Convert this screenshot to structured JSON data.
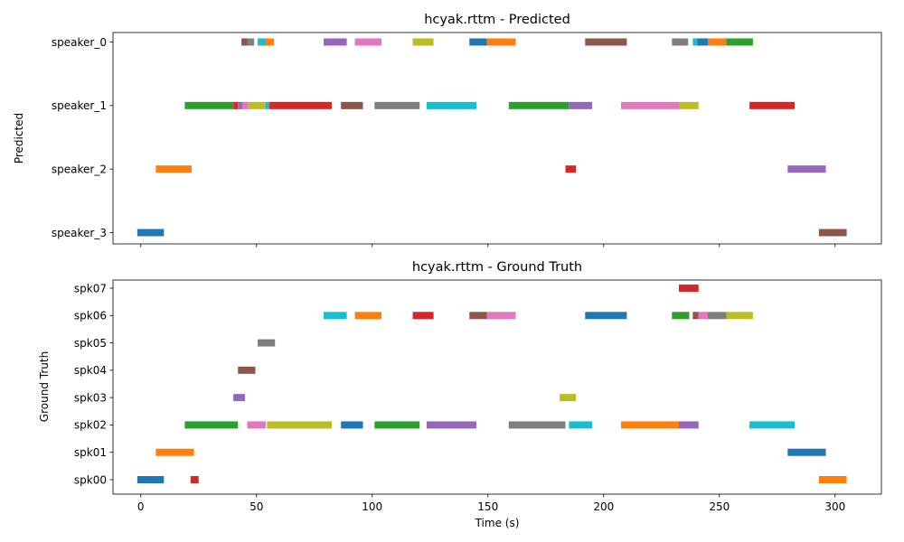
{
  "chart_data": [
    {
      "type": "timeline",
      "title": "hcyak.rttm - Predicted",
      "ylabel": "Predicted",
      "xlabel": "",
      "xlim": [
        -12,
        320
      ],
      "xticks": [
        0,
        50,
        100,
        150,
        200,
        250,
        300
      ],
      "show_xtick_labels": false,
      "grid": false,
      "rows": [
        "speaker_3",
        "speaker_2",
        "speaker_1",
        "speaker_0"
      ],
      "segments": [
        {
          "row": "speaker_0",
          "start": 43.5,
          "end": 46.0,
          "color": "#8c564b"
        },
        {
          "row": "speaker_0",
          "start": 46.0,
          "end": 49.0,
          "color": "#7f7f7f"
        },
        {
          "row": "speaker_0",
          "start": 50.5,
          "end": 54.0,
          "color": "#17becf"
        },
        {
          "row": "speaker_0",
          "start": 54.0,
          "end": 57.5,
          "color": "#ff7f0e"
        },
        {
          "row": "speaker_0",
          "start": 79.0,
          "end": 89.0,
          "color": "#9467bd"
        },
        {
          "row": "speaker_0",
          "start": 92.5,
          "end": 104.0,
          "color": "#e377c2"
        },
        {
          "row": "speaker_0",
          "start": 117.5,
          "end": 126.5,
          "color": "#bcbd22"
        },
        {
          "row": "speaker_0",
          "start": 142.0,
          "end": 149.5,
          "color": "#1f77b4"
        },
        {
          "row": "speaker_0",
          "start": 149.5,
          "end": 162.0,
          "color": "#ff7f0e"
        },
        {
          "row": "speaker_0",
          "start": 192.0,
          "end": 210.0,
          "color": "#8c564b"
        },
        {
          "row": "speaker_0",
          "start": 229.5,
          "end": 236.5,
          "color": "#7f7f7f"
        },
        {
          "row": "speaker_0",
          "start": 238.5,
          "end": 240.5,
          "color": "#17becf"
        },
        {
          "row": "speaker_0",
          "start": 240.5,
          "end": 245.0,
          "color": "#1f77b4"
        },
        {
          "row": "speaker_0",
          "start": 245.0,
          "end": 253.0,
          "color": "#ff7f0e"
        },
        {
          "row": "speaker_0",
          "start": 253.0,
          "end": 264.5,
          "color": "#2ca02c"
        },
        {
          "row": "speaker_1",
          "start": 19.0,
          "end": 40.0,
          "color": "#2ca02c"
        },
        {
          "row": "speaker_1",
          "start": 40.0,
          "end": 42.0,
          "color": "#d62728"
        },
        {
          "row": "speaker_1",
          "start": 42.0,
          "end": 44.0,
          "color": "#9467bd"
        },
        {
          "row": "speaker_1",
          "start": 44.0,
          "end": 46.5,
          "color": "#e377c2"
        },
        {
          "row": "speaker_1",
          "start": 46.5,
          "end": 54.0,
          "color": "#bcbd22"
        },
        {
          "row": "speaker_1",
          "start": 54.0,
          "end": 55.5,
          "color": "#17becf"
        },
        {
          "row": "speaker_1",
          "start": 55.5,
          "end": 82.5,
          "color": "#d62728"
        },
        {
          "row": "speaker_1",
          "start": 86.5,
          "end": 96.0,
          "color": "#8c564b"
        },
        {
          "row": "speaker_1",
          "start": 101.0,
          "end": 120.5,
          "color": "#7f7f7f"
        },
        {
          "row": "speaker_1",
          "start": 123.5,
          "end": 145.0,
          "color": "#17becf"
        },
        {
          "row": "speaker_1",
          "start": 159.0,
          "end": 185.0,
          "color": "#2ca02c"
        },
        {
          "row": "speaker_1",
          "start": 185.0,
          "end": 195.0,
          "color": "#9467bd"
        },
        {
          "row": "speaker_1",
          "start": 207.5,
          "end": 232.5,
          "color": "#e377c2"
        },
        {
          "row": "speaker_1",
          "start": 232.5,
          "end": 241.0,
          "color": "#bcbd22"
        },
        {
          "row": "speaker_1",
          "start": 263.0,
          "end": 282.5,
          "color": "#d62728"
        },
        {
          "row": "speaker_2",
          "start": 6.5,
          "end": 22.0,
          "color": "#ff7f0e"
        },
        {
          "row": "speaker_2",
          "start": 183.5,
          "end": 188.0,
          "color": "#d62728"
        },
        {
          "row": "speaker_2",
          "start": 279.5,
          "end": 296.0,
          "color": "#9467bd"
        },
        {
          "row": "speaker_3",
          "start": -1.5,
          "end": 10.0,
          "color": "#1f77b4"
        },
        {
          "row": "speaker_3",
          "start": 293.0,
          "end": 305.0,
          "color": "#8c564b"
        }
      ]
    },
    {
      "type": "timeline",
      "title": "hcyak.rttm - Ground Truth",
      "ylabel": "Ground Truth",
      "xlabel": "Time (s)",
      "xlim": [
        -12,
        320
      ],
      "xticks": [
        0,
        50,
        100,
        150,
        200,
        250,
        300
      ],
      "show_xtick_labels": true,
      "grid": false,
      "rows": [
        "spk00",
        "spk01",
        "spk02",
        "spk03",
        "spk04",
        "spk05",
        "spk06",
        "spk07"
      ],
      "segments": [
        {
          "row": "spk00",
          "start": -1.5,
          "end": 10.0,
          "color": "#1f77b4"
        },
        {
          "row": "spk00",
          "start": 21.5,
          "end": 25.0,
          "color": "#d62728"
        },
        {
          "row": "spk00",
          "start": 293.0,
          "end": 305.0,
          "color": "#ff7f0e"
        },
        {
          "row": "spk01",
          "start": 6.5,
          "end": 23.0,
          "color": "#ff7f0e"
        },
        {
          "row": "spk01",
          "start": 279.5,
          "end": 296.0,
          "color": "#1f77b4"
        },
        {
          "row": "spk02",
          "start": 19.0,
          "end": 42.0,
          "color": "#2ca02c"
        },
        {
          "row": "spk02",
          "start": 46.0,
          "end": 54.0,
          "color": "#e377c2"
        },
        {
          "row": "spk02",
          "start": 54.5,
          "end": 82.5,
          "color": "#bcbd22"
        },
        {
          "row": "spk02",
          "start": 86.5,
          "end": 96.0,
          "color": "#1f77b4"
        },
        {
          "row": "spk02",
          "start": 101.0,
          "end": 120.5,
          "color": "#2ca02c"
        },
        {
          "row": "spk02",
          "start": 123.5,
          "end": 145.0,
          "color": "#9467bd"
        },
        {
          "row": "spk02",
          "start": 159.0,
          "end": 183.5,
          "color": "#7f7f7f"
        },
        {
          "row": "spk02",
          "start": 185.0,
          "end": 195.0,
          "color": "#17becf"
        },
        {
          "row": "spk02",
          "start": 207.5,
          "end": 232.5,
          "color": "#ff7f0e"
        },
        {
          "row": "spk02",
          "start": 232.5,
          "end": 241.0,
          "color": "#9467bd"
        },
        {
          "row": "spk02",
          "start": 263.0,
          "end": 282.5,
          "color": "#17becf"
        },
        {
          "row": "spk03",
          "start": 40.0,
          "end": 45.0,
          "color": "#9467bd"
        },
        {
          "row": "spk03",
          "start": 181.0,
          "end": 188.0,
          "color": "#bcbd22"
        },
        {
          "row": "spk04",
          "start": 42.0,
          "end": 49.5,
          "color": "#8c564b"
        },
        {
          "row": "spk05",
          "start": 50.5,
          "end": 58.0,
          "color": "#7f7f7f"
        },
        {
          "row": "spk06",
          "start": 79.0,
          "end": 89.0,
          "color": "#17becf"
        },
        {
          "row": "spk06",
          "start": 92.5,
          "end": 104.0,
          "color": "#ff7f0e"
        },
        {
          "row": "spk06",
          "start": 117.5,
          "end": 126.5,
          "color": "#d62728"
        },
        {
          "row": "spk06",
          "start": 142.0,
          "end": 149.5,
          "color": "#8c564b"
        },
        {
          "row": "spk06",
          "start": 149.5,
          "end": 162.0,
          "color": "#e377c2"
        },
        {
          "row": "spk06",
          "start": 192.0,
          "end": 210.0,
          "color": "#1f77b4"
        },
        {
          "row": "spk06",
          "start": 229.5,
          "end": 237.0,
          "color": "#2ca02c"
        },
        {
          "row": "spk06",
          "start": 238.5,
          "end": 241.0,
          "color": "#8c564b"
        },
        {
          "row": "spk06",
          "start": 241.0,
          "end": 245.0,
          "color": "#e377c2"
        },
        {
          "row": "spk06",
          "start": 245.0,
          "end": 253.0,
          "color": "#7f7f7f"
        },
        {
          "row": "spk06",
          "start": 253.0,
          "end": 264.5,
          "color": "#bcbd22"
        },
        {
          "row": "spk07",
          "start": 232.5,
          "end": 241.0,
          "color": "#d62728"
        }
      ]
    }
  ]
}
